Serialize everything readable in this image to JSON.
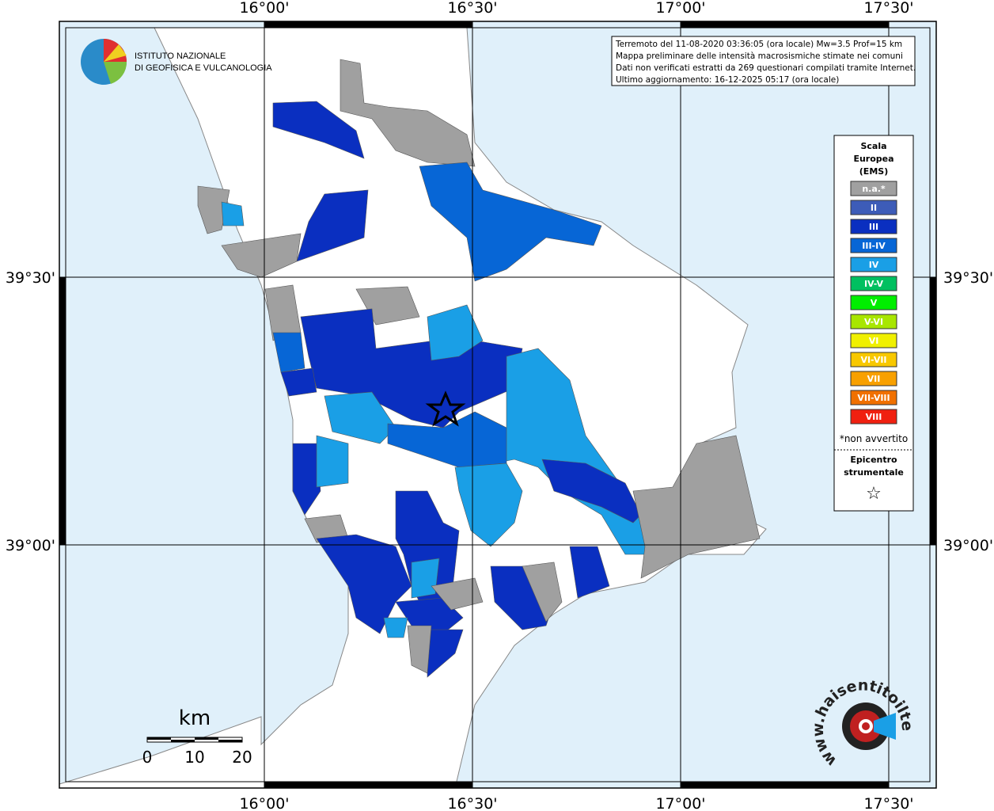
{
  "map": {
    "lon_labels": [
      "16°00'",
      "16°30'",
      "17°00'",
      "17°30'"
    ],
    "lat_labels": [
      "39°30'",
      "39°00'"
    ],
    "institute": [
      "ISTITUTO NAZIONALE",
      "DI GEOFISICA E VULCANOLOGIA"
    ],
    "info": [
      "Terremoto del 11-08-2020 03:36:05 (ora locale) Mw=3.5 Prof=15 km",
      "Mappa preliminare delle intensità macrosismiche stimate nei comuni",
      "Dati non verificati estratti da 269 questionari compilati tramite Internet.",
      "Ultimo aggiornamento: 16-12-2025 05:17 (ora locale)"
    ],
    "legend": {
      "title": [
        "Scala",
        "Europea",
        "(EMS)"
      ],
      "items": [
        {
          "label": "n.a.*",
          "color": "#a0a0a0"
        },
        {
          "label": "II",
          "color": "#3d5cb8"
        },
        {
          "label": "III",
          "color": "#0a2fc0"
        },
        {
          "label": "III-IV",
          "color": "#0766d6"
        },
        {
          "label": "IV",
          "color": "#1a9fe6"
        },
        {
          "label": "IV-V",
          "color": "#00c060"
        },
        {
          "label": "V",
          "color": "#00ee00"
        },
        {
          "label": "V-VI",
          "color": "#a8e600"
        },
        {
          "label": "VI",
          "color": "#f0f000"
        },
        {
          "label": "VI-VII",
          "color": "#f8c800"
        },
        {
          "label": "VII",
          "color": "#f8a000"
        },
        {
          "label": "VII-VIII",
          "color": "#f07000"
        },
        {
          "label": "VIII",
          "color": "#f02010"
        }
      ],
      "note": "*non avvertito",
      "epicenter": [
        "Epicentro",
        "strumentale"
      ],
      "star": "☆"
    },
    "scale": {
      "unit": "km",
      "ticks": [
        "0",
        "10",
        "20"
      ]
    },
    "site_logo": "www.haisentitoilterremoto.it"
  }
}
